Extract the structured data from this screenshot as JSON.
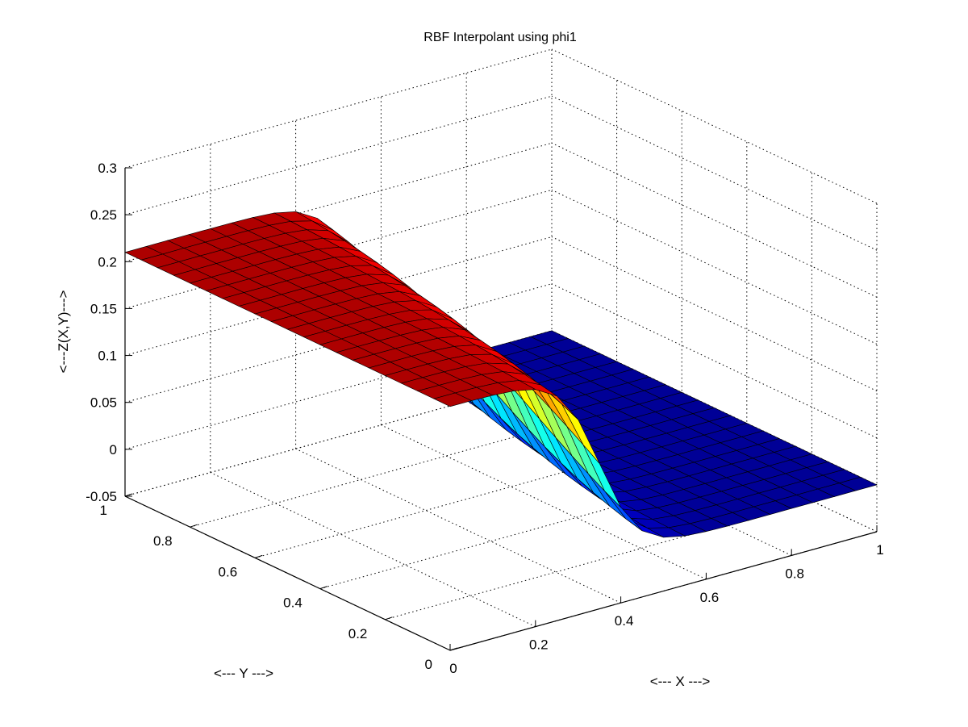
{
  "chart_data": {
    "type": "surface",
    "title": "RBF Interpolant using phi1",
    "xlabel": "<--- X --->",
    "ylabel": "<--- Y --->",
    "zlabel": "<---Z(X,Y)--->",
    "x_range": [
      0,
      1
    ],
    "y_range": [
      0,
      1
    ],
    "zlim": [
      -0.05,
      0.3
    ],
    "grid": true,
    "colormap": "jet",
    "mesh": {
      "nx": 21,
      "ny": 21
    },
    "surface_function": {
      "form": "z = 0.21 - 0.21 / (1 + exp(-(x - 0.35 - 0.2*y) / 0.045))",
      "description": "smooth step from about 0.22 at low x to about 0 at high x; step location moves toward higher x as y increases"
    },
    "x_ticks": [
      {
        "value": 0,
        "label": "0"
      },
      {
        "value": 0.2,
        "label": "0.2"
      },
      {
        "value": 0.4,
        "label": "0.4"
      },
      {
        "value": 0.6,
        "label": "0.6"
      },
      {
        "value": 0.8,
        "label": "0.8"
      },
      {
        "value": 1,
        "label": "1"
      }
    ],
    "y_ticks": [
      {
        "value": 0,
        "label": "0"
      },
      {
        "value": 0.2,
        "label": "0.2"
      },
      {
        "value": 0.4,
        "label": "0.4"
      },
      {
        "value": 0.6,
        "label": "0.6"
      },
      {
        "value": 0.8,
        "label": "0.8"
      },
      {
        "value": 1,
        "label": "1"
      }
    ],
    "z_ticks": [
      {
        "value": -0.05,
        "label": "-0.05"
      },
      {
        "value": 0,
        "label": "0"
      },
      {
        "value": 0.05,
        "label": "0.05"
      },
      {
        "value": 0.1,
        "label": "0.1"
      },
      {
        "value": 0.15,
        "label": "0.15"
      },
      {
        "value": 0.2,
        "label": "0.2"
      },
      {
        "value": 0.25,
        "label": "0.25"
      },
      {
        "value": 0.3,
        "label": "0.3"
      }
    ]
  }
}
